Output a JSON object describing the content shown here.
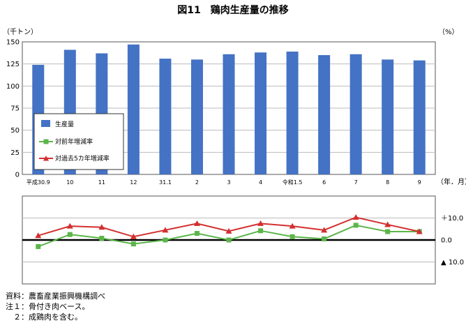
{
  "chart_data": {
    "type": "bar",
    "title": "図11　鶏肉生産量の推移",
    "left_unit_label": "（千トン）",
    "right_unit_label": "（%）",
    "x_unit_label": "（年．月）",
    "categories": [
      "平成30.9",
      "10",
      "11",
      "12",
      "31.1",
      "2",
      "3",
      "4",
      "令和1.5",
      "6",
      "7",
      "8",
      "9"
    ],
    "left_axis": {
      "ticks": [
        "0",
        "25",
        "50",
        "75",
        "100",
        "125",
        "150"
      ],
      "ylim": [
        0,
        150
      ]
    },
    "right_axis": {
      "ticks": [
        "＋10.0",
        "0.0",
        "▲ 10.0"
      ],
      "ylim": [
        -20,
        20
      ]
    },
    "grid": true,
    "legend_position": "left",
    "series": [
      {
        "name": "生産量",
        "kind": "bar",
        "axis": "left",
        "color": "#4472c4",
        "values": [
          124,
          141,
          137,
          147,
          131,
          130,
          136,
          138,
          139,
          135,
          136,
          130,
          129
        ]
      },
      {
        "name": "対前年増減率",
        "kind": "line",
        "axis": "right",
        "color": "#5cb54a",
        "values": [
          -3.0,
          2.5,
          0.8,
          -1.8,
          0.0,
          3.0,
          0.0,
          4.2,
          1.5,
          0.5,
          6.7,
          3.8,
          3.8
        ]
      },
      {
        "name": "対過去5カ年増減率",
        "kind": "line",
        "axis": "right",
        "color": "#d32f2f",
        "values": [
          2.0,
          6.3,
          5.8,
          1.5,
          4.5,
          7.5,
          4.0,
          7.5,
          6.3,
          4.5,
          10.3,
          7.0,
          3.8
        ]
      }
    ]
  },
  "notes": [
    "資料：農畜産業振興機構調べ",
    "注１：骨付き肉ベース。",
    "　２：成鶏肉を含む。"
  ]
}
